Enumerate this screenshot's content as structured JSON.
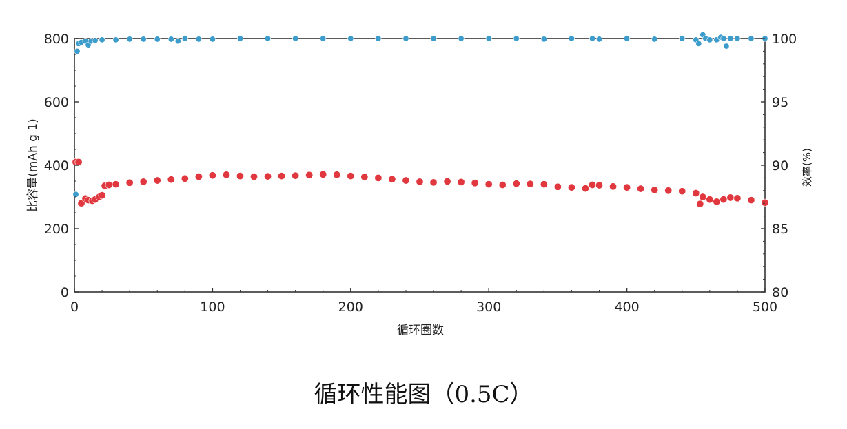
{
  "caption": "循环性能图（0.5C）",
  "chart_data": {
    "type": "scatter",
    "xlabel": "循环圈数",
    "ylabel_left": "比容量(mAh g 1)",
    "ylabel_right": "效率(%)",
    "xlim": [
      0,
      500
    ],
    "ylim_left": [
      0,
      800
    ],
    "ylim_right": [
      80,
      100
    ],
    "x_ticks": [
      "0",
      "100",
      "200",
      "300",
      "400",
      "500"
    ],
    "y_left_ticks": [
      "0",
      "200",
      "400",
      "600",
      "800"
    ],
    "y_right_ticks": [
      "80",
      "85",
      "90",
      "95",
      "100"
    ],
    "colors": {
      "capacity": "#e0383e",
      "efficiency": "#3c9ccc"
    },
    "series": [
      {
        "axis": "left",
        "x": [
          1,
          3,
          5,
          8,
          10,
          13,
          15,
          18,
          20,
          22,
          25,
          30,
          40,
          50,
          60,
          70,
          80,
          90,
          100,
          110,
          120,
          130,
          140,
          150,
          160,
          170,
          180,
          190,
          200,
          210,
          220,
          230,
          240,
          250,
          260,
          270,
          280,
          290,
          300,
          310,
          320,
          330,
          340,
          350,
          360,
          370,
          375,
          380,
          390,
          400,
          410,
          420,
          430,
          440,
          450,
          453,
          455,
          460,
          465,
          470,
          475,
          480,
          490,
          500
        ],
        "values": [
          410,
          410,
          280,
          295,
          290,
          288,
          292,
          300,
          305,
          335,
          338,
          340,
          345,
          348,
          352,
          355,
          358,
          364,
          368,
          370,
          366,
          364,
          365,
          366,
          367,
          369,
          371,
          370,
          366,
          363,
          360,
          356,
          352,
          348,
          346,
          349,
          347,
          344,
          340,
          338,
          342,
          341,
          340,
          332,
          330,
          327,
          338,
          337,
          333,
          330,
          326,
          322,
          320,
          318,
          312,
          278,
          300,
          292,
          285,
          292,
          298,
          296,
          290,
          282
        ]
      },
      {
        "axis": "right",
        "x": [
          1,
          2,
          3,
          5,
          8,
          10,
          12,
          15,
          20,
          30,
          40,
          50,
          60,
          70,
          75,
          80,
          90,
          100,
          120,
          140,
          160,
          180,
          200,
          220,
          240,
          260,
          280,
          300,
          320,
          340,
          360,
          375,
          380,
          400,
          420,
          440,
          450,
          452,
          455,
          457,
          460,
          465,
          468,
          470,
          472,
          475,
          480,
          490,
          500
        ],
        "values": [
          87.7,
          99.0,
          99.6,
          99.7,
          99.8,
          99.5,
          99.8,
          99.85,
          99.9,
          99.9,
          99.95,
          99.95,
          99.95,
          99.95,
          99.8,
          100.0,
          99.95,
          99.95,
          100.0,
          100.0,
          100.0,
          100.0,
          100.0,
          100.0,
          100.0,
          100.0,
          100.0,
          100.0,
          100.0,
          99.95,
          100.0,
          100.0,
          99.95,
          100.0,
          99.95,
          100.0,
          99.9,
          99.6,
          100.3,
          100.0,
          99.9,
          99.9,
          100.1,
          100.0,
          99.4,
          100.0,
          100.0,
          100.0,
          100.0
        ]
      }
    ]
  }
}
